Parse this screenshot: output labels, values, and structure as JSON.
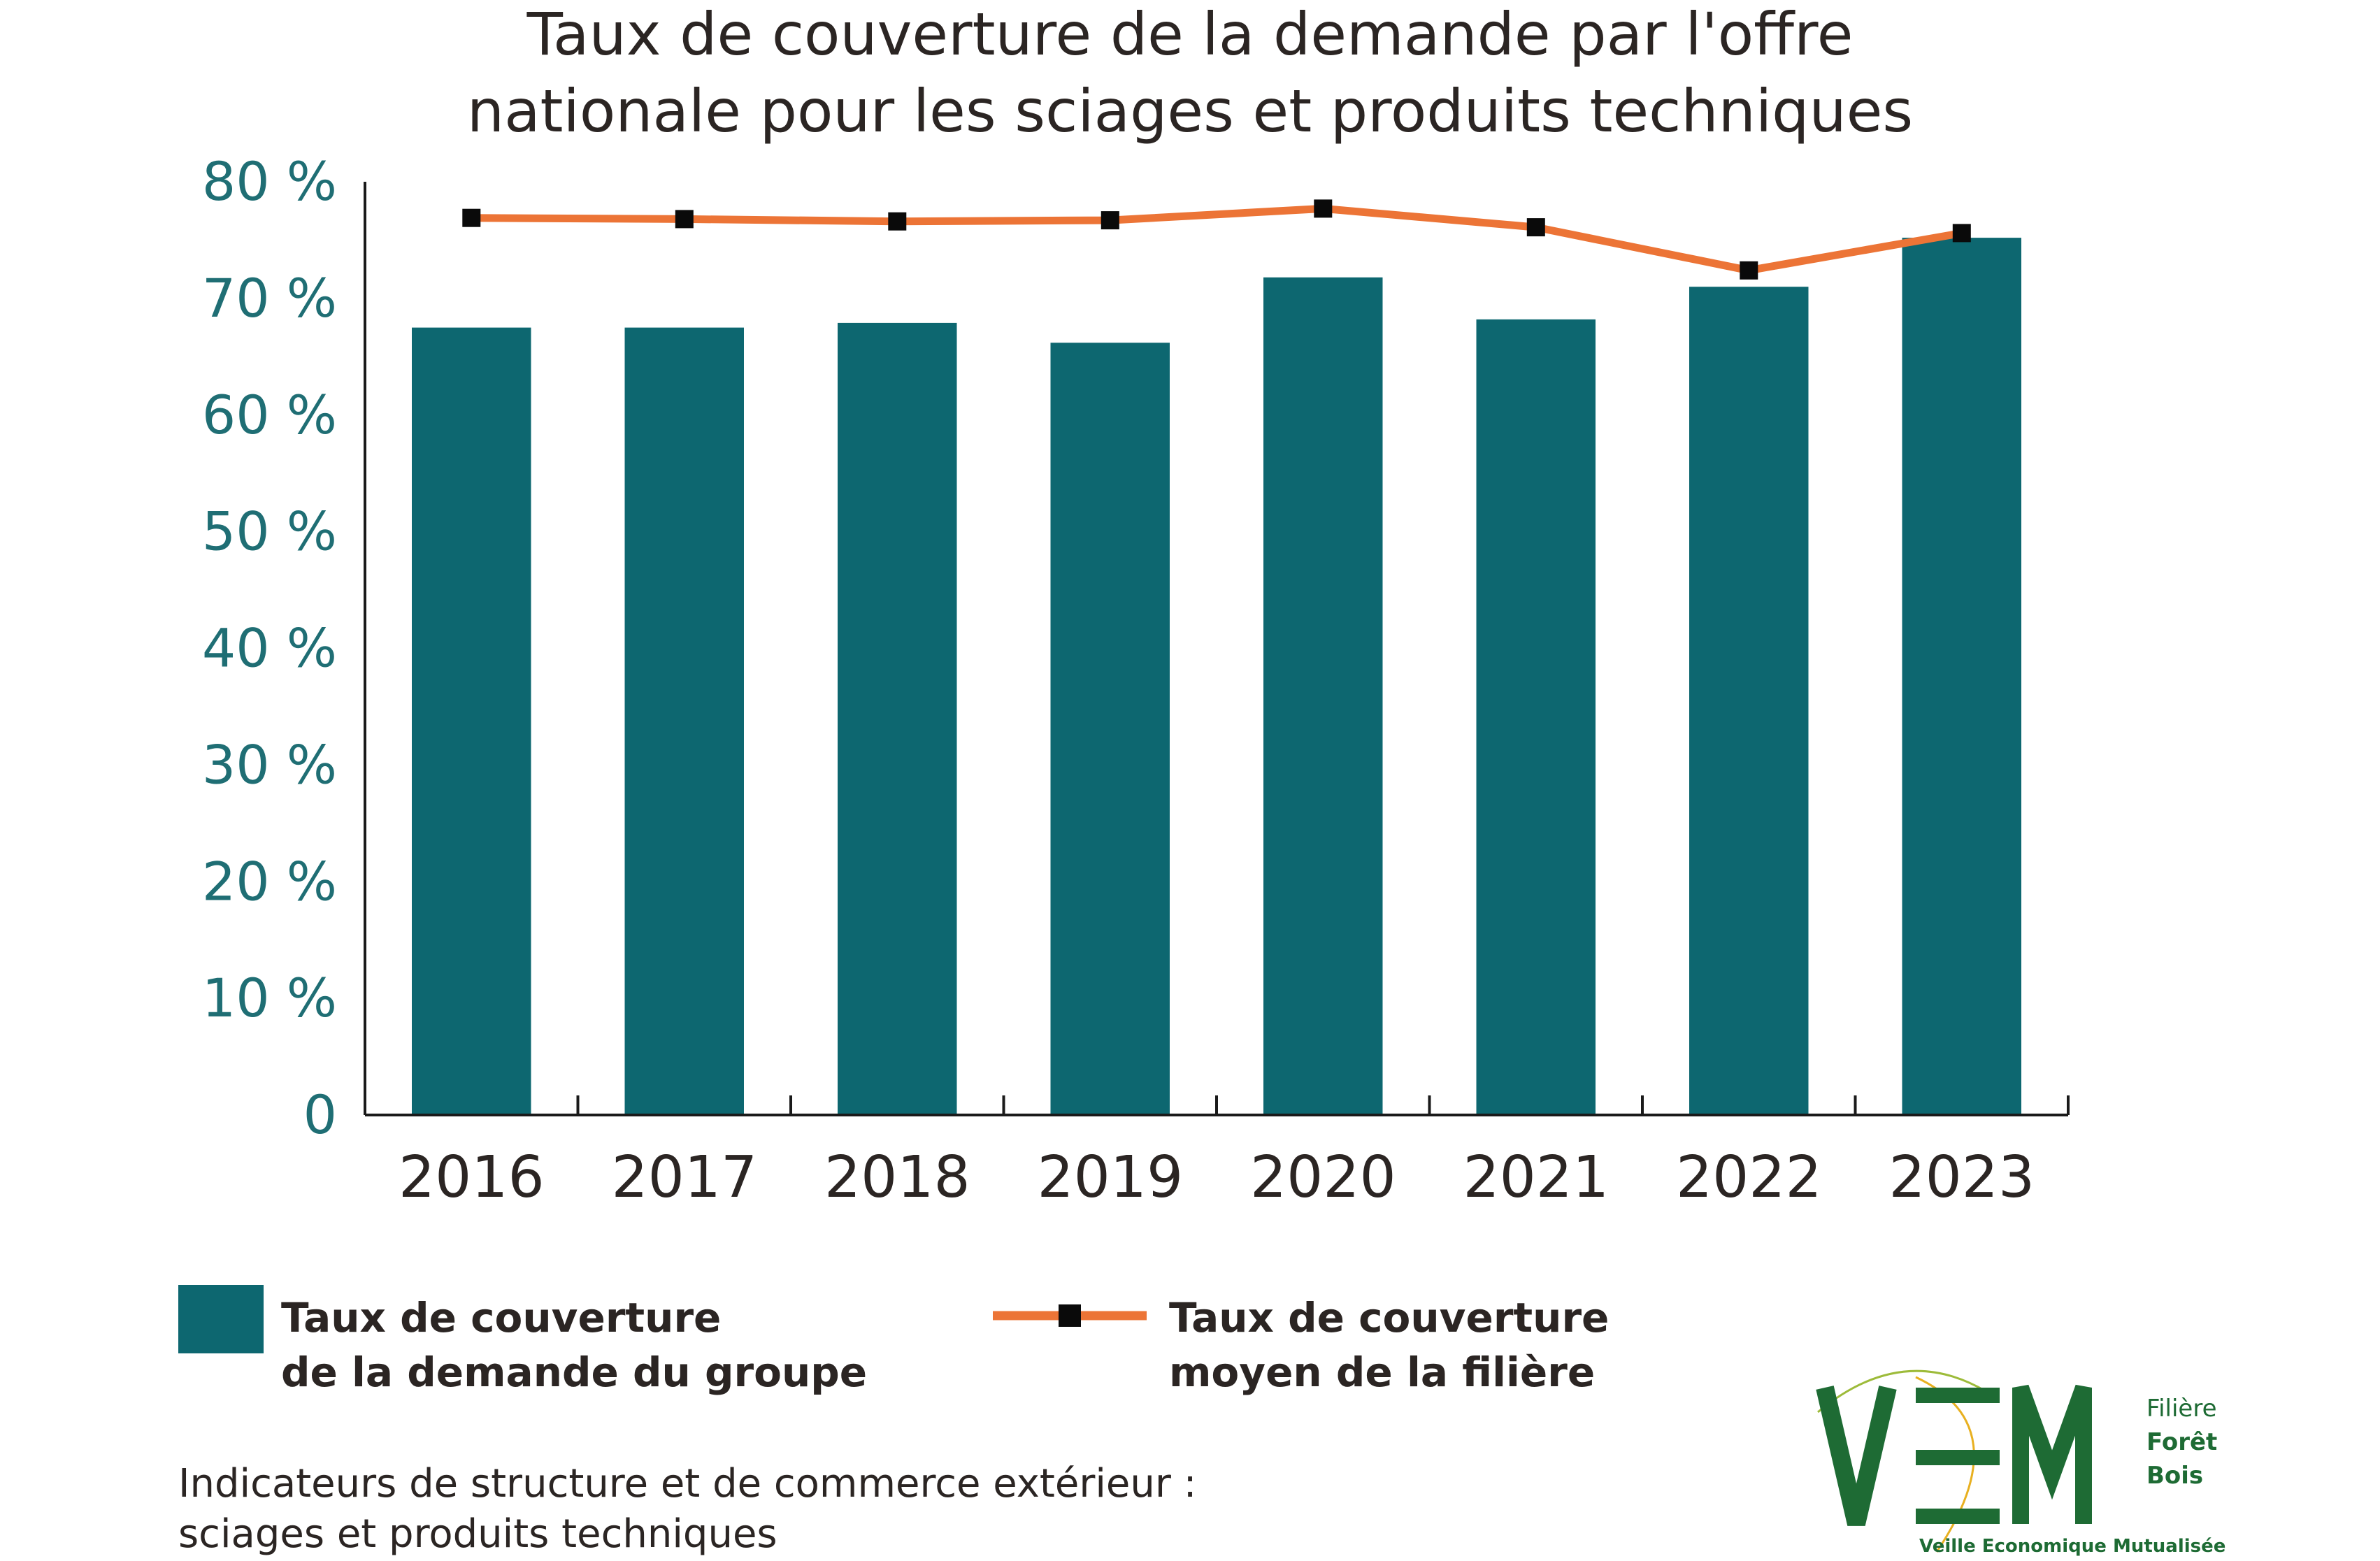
{
  "chart_data": {
    "type": "bar",
    "title_lines": [
      "Taux de couverture de la demande par l'offre",
      "nationale pour les sciages et produits techniques"
    ],
    "categories": [
      "2016",
      "2017",
      "2018",
      "2019",
      "2020",
      "2021",
      "2022",
      "2023"
    ],
    "series": [
      {
        "name": "Taux de couverture de la demande du groupe",
        "type": "bar",
        "color": "#0d6770",
        "values": [
          67.5,
          67.5,
          67.9,
          66.2,
          71.8,
          68.2,
          71.0,
          75.2
        ]
      },
      {
        "name": "Taux de couverture moyen de la filière",
        "type": "line",
        "color": "#ec7436",
        "marker_color": "#0a0a0a",
        "values": [
          76.9,
          76.8,
          76.6,
          76.7,
          77.7,
          76.1,
          72.4,
          75.6
        ]
      }
    ],
    "yticks": [
      "0",
      "10 %",
      "20 %",
      "30 %",
      "40 %",
      "50 %",
      "60 %",
      "70 %",
      "80 %"
    ],
    "ylim": [
      0,
      80
    ],
    "grid": false,
    "legend": [
      {
        "lines": [
          "Taux de couverture",
          "de la demande du groupe"
        ]
      },
      {
        "lines": [
          "Taux de couverture",
          "moyen de la filière"
        ]
      }
    ],
    "legend_position": "bottom"
  },
  "footer": {
    "lines": [
      "Indicateurs de structure et de commerce extérieur :",
      "sciages et produits techniques"
    ]
  },
  "logo": {
    "lines": [
      "Filière",
      "Forêt",
      "Bois"
    ],
    "tagline": "Veille Economique Mutualisée"
  }
}
